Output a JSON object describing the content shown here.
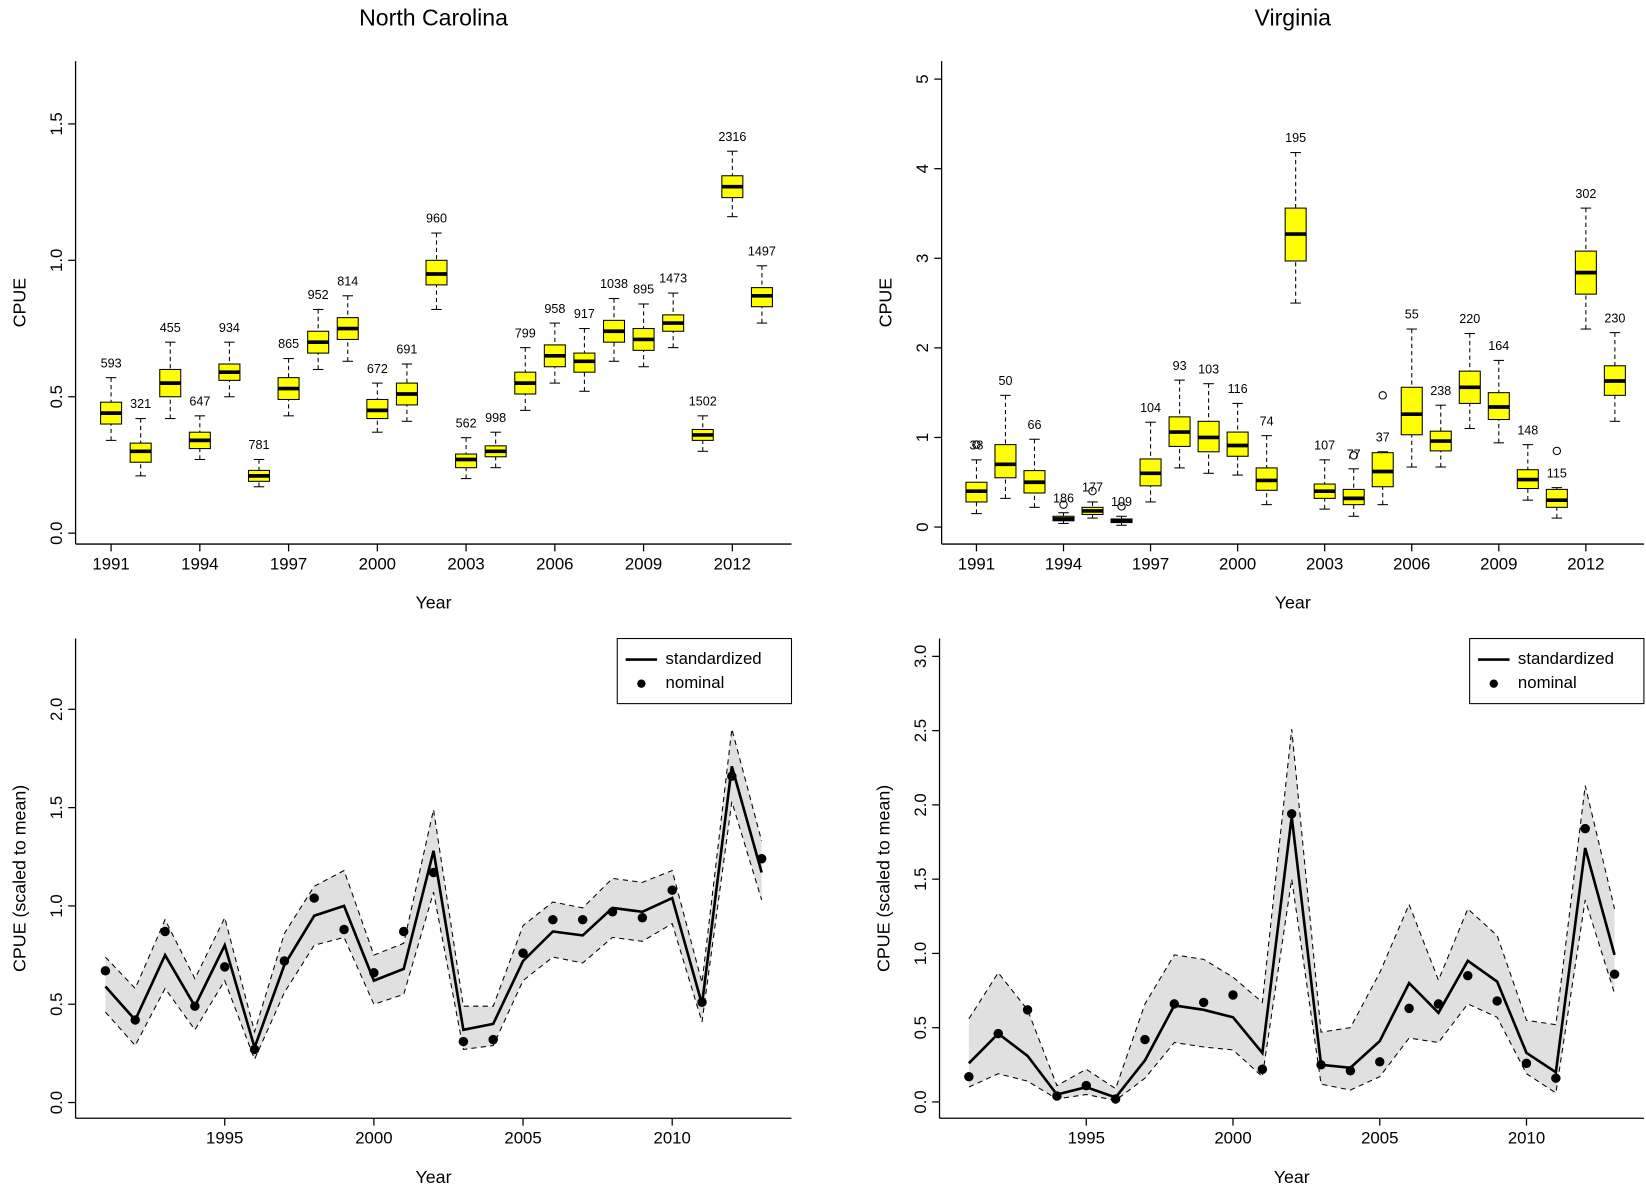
{
  "chart_data": [
    {
      "type": "box",
      "title": "North Carolina",
      "x_label": "Year",
      "y_label": "CPUE",
      "color": "#ffff00",
      "x": [
        1991,
        1992,
        1993,
        1994,
        1995,
        1996,
        1997,
        1998,
        1999,
        2000,
        2001,
        2002,
        2003,
        2004,
        2005,
        2006,
        2007,
        2008,
        2009,
        2010,
        2011,
        2012,
        2013
      ],
      "whisker_low": [
        0.34,
        0.21,
        0.42,
        0.27,
        0.5,
        0.17,
        0.43,
        0.6,
        0.63,
        0.37,
        0.41,
        0.82,
        0.2,
        0.24,
        0.45,
        0.55,
        0.52,
        0.63,
        0.61,
        0.68,
        0.3,
        1.16,
        0.77
      ],
      "q1": [
        0.4,
        0.26,
        0.5,
        0.31,
        0.56,
        0.19,
        0.49,
        0.66,
        0.71,
        0.42,
        0.47,
        0.91,
        0.24,
        0.28,
        0.51,
        0.61,
        0.59,
        0.7,
        0.67,
        0.74,
        0.34,
        1.23,
        0.83
      ],
      "median": [
        0.44,
        0.3,
        0.55,
        0.34,
        0.59,
        0.21,
        0.53,
        0.7,
        0.75,
        0.45,
        0.51,
        0.95,
        0.27,
        0.3,
        0.55,
        0.65,
        0.63,
        0.74,
        0.71,
        0.77,
        0.36,
        1.27,
        0.87
      ],
      "q3": [
        0.48,
        0.33,
        0.6,
        0.37,
        0.62,
        0.23,
        0.57,
        0.74,
        0.79,
        0.49,
        0.55,
        1.0,
        0.29,
        0.32,
        0.59,
        0.69,
        0.66,
        0.78,
        0.75,
        0.8,
        0.38,
        1.31,
        0.9
      ],
      "whisker_high": [
        0.57,
        0.42,
        0.7,
        0.43,
        0.7,
        0.27,
        0.64,
        0.82,
        0.87,
        0.55,
        0.62,
        1.1,
        0.35,
        0.37,
        0.68,
        0.77,
        0.75,
        0.86,
        0.84,
        0.88,
        0.43,
        1.4,
        0.98
      ],
      "n": [
        593,
        321,
        455,
        647,
        934,
        781,
        865,
        952,
        814,
        672,
        691,
        960,
        562,
        998,
        799,
        958,
        917,
        1038,
        895,
        1473,
        1502,
        2316,
        1497
      ],
      "xlim": [
        1989.8,
        2014
      ],
      "xticks": [
        1991,
        1994,
        1997,
        2000,
        2003,
        2006,
        2009,
        2012
      ],
      "ylim": [
        -0.04,
        1.73
      ],
      "yticks": [
        {
          "value": 0,
          "label": "0.0"
        },
        0.5,
        {
          "value": 1,
          "label": "1.0"
        },
        1.5
      ]
    },
    {
      "type": "box",
      "title": "Virginia",
      "x_label": "Year",
      "y_label": "CPUE",
      "color": "#ffff00",
      "x": [
        1991,
        1992,
        1993,
        1994,
        1995,
        1996,
        1997,
        1998,
        1999,
        2000,
        2001,
        2002,
        2003,
        2004,
        2005,
        2006,
        2007,
        2008,
        2009,
        2010,
        2011,
        2012,
        2013
      ],
      "whisker_low": [
        0.15,
        0.32,
        0.22,
        0.04,
        0.1,
        0.02,
        0.28,
        0.66,
        0.6,
        0.58,
        0.25,
        2.5,
        0.2,
        0.12,
        0.25,
        0.67,
        0.67,
        1.1,
        0.94,
        0.3,
        0.1,
        2.21,
        1.18
      ],
      "q1": [
        0.28,
        0.55,
        0.38,
        0.07,
        0.14,
        0.05,
        0.46,
        0.9,
        0.84,
        0.79,
        0.41,
        2.97,
        0.32,
        0.25,
        0.45,
        1.03,
        0.85,
        1.38,
        1.2,
        0.43,
        0.22,
        2.6,
        1.47
      ],
      "median": [
        0.4,
        0.7,
        0.5,
        0.09,
        0.18,
        0.07,
        0.6,
        1.06,
        1.0,
        0.91,
        0.52,
        3.27,
        0.4,
        0.32,
        0.62,
        1.26,
        0.96,
        1.56,
        1.34,
        0.53,
        0.3,
        2.84,
        1.63
      ],
      "q3": [
        0.5,
        0.92,
        0.63,
        0.12,
        0.22,
        0.09,
        0.76,
        1.23,
        1.18,
        1.06,
        0.66,
        3.56,
        0.48,
        0.42,
        0.83,
        1.56,
        1.07,
        1.74,
        1.5,
        0.64,
        0.42,
        3.08,
        1.8
      ],
      "whisker_high": [
        0.75,
        1.47,
        0.98,
        0.16,
        0.28,
        0.12,
        1.17,
        1.64,
        1.6,
        1.38,
        1.02,
        4.18,
        0.75,
        0.65,
        0.84,
        2.21,
        1.36,
        2.16,
        1.86,
        0.92,
        0.44,
        3.56,
        2.17
      ],
      "n": [
        38,
        50,
        66,
        186,
        177,
        109,
        104,
        93,
        103,
        116,
        74,
        195,
        107,
        77,
        37,
        55,
        238,
        220,
        164,
        148,
        115,
        302,
        230
      ],
      "outliers": {
        "x": [
          1991,
          1994,
          1995,
          1996,
          2004,
          2005,
          2011
        ],
        "values": [
          0.92,
          0.25,
          0.4,
          0.23,
          0.8,
          1.47,
          0.85
        ]
      },
      "xlim": [
        1989.8,
        2014
      ],
      "xticks": [
        1991,
        1994,
        1997,
        2000,
        2003,
        2006,
        2009,
        2012
      ],
      "ylim": [
        -0.19,
        5.2
      ],
      "yticks": [
        0,
        1,
        2,
        3,
        4,
        5
      ]
    },
    {
      "type": "line",
      "x_label": "Year",
      "y_label": "CPUE (scaled to mean)",
      "legend": "top-right",
      "x": [
        1991,
        1992,
        1993,
        1994,
        1995,
        1996,
        1997,
        1998,
        1999,
        2000,
        2001,
        2002,
        2003,
        2004,
        2005,
        2006,
        2007,
        2008,
        2009,
        2010,
        2011,
        2012,
        2013
      ],
      "band": {
        "color": "#e0e0e0",
        "lower": [
          0.46,
          0.29,
          0.58,
          0.37,
          0.62,
          0.22,
          0.56,
          0.8,
          0.84,
          0.5,
          0.55,
          1.07,
          0.27,
          0.29,
          0.62,
          0.74,
          0.71,
          0.84,
          0.82,
          0.91,
          0.41,
          1.53,
          1.03
        ],
        "upper": [
          0.74,
          0.58,
          0.93,
          0.63,
          0.94,
          0.36,
          0.86,
          1.1,
          1.18,
          0.75,
          0.81,
          1.49,
          0.49,
          0.49,
          0.9,
          1.02,
          0.99,
          1.14,
          1.12,
          1.18,
          0.61,
          1.9,
          1.33
        ]
      },
      "series": [
        {
          "name": "standardized",
          "color": "#000000",
          "mode": "line",
          "values": [
            0.59,
            0.42,
            0.75,
            0.49,
            0.8,
            0.28,
            0.7,
            0.95,
            1.0,
            0.62,
            0.68,
            1.28,
            0.37,
            0.4,
            0.72,
            0.87,
            0.85,
            0.99,
            0.97,
            1.04,
            0.5,
            1.71,
            1.17
          ]
        },
        {
          "name": "nominal",
          "color": "#000000",
          "mode": "markers",
          "values": [
            0.67,
            0.42,
            0.87,
            0.49,
            0.69,
            0.27,
            0.72,
            1.04,
            0.88,
            0.66,
            0.87,
            1.17,
            0.31,
            0.32,
            0.76,
            0.93,
            0.93,
            0.97,
            0.94,
            1.08,
            0.51,
            1.66,
            1.24
          ]
        }
      ],
      "xlim": [
        1990,
        2014
      ],
      "xticks": [
        1995,
        2000,
        2005,
        2010
      ],
      "ylim": [
        -0.08,
        2.36
      ],
      "yticks": [
        {
          "value": 0,
          "label": "0.0"
        },
        0.5,
        {
          "value": 1,
          "label": "1.0"
        },
        1.5,
        {
          "value": 2,
          "label": "2.0"
        }
      ]
    },
    {
      "type": "line",
      "x_label": "Year",
      "y_label": "CPUE (scaled to mean)",
      "legend": "top-right",
      "x": [
        1991,
        1992,
        1993,
        1994,
        1995,
        1996,
        1997,
        1998,
        1999,
        2000,
        2001,
        2002,
        2003,
        2004,
        2005,
        2006,
        2007,
        2008,
        2009,
        2010,
        2011,
        2012,
        2013
      ],
      "band": {
        "color": "#e0e0e0",
        "lower": [
          0.1,
          0.19,
          0.14,
          0.02,
          0.05,
          0.01,
          0.16,
          0.4,
          0.37,
          0.35,
          0.17,
          1.5,
          0.12,
          0.08,
          0.17,
          0.43,
          0.4,
          0.66,
          0.57,
          0.19,
          0.06,
          1.36,
          0.73
        ],
        "upper": [
          0.56,
          0.87,
          0.62,
          0.11,
          0.22,
          0.09,
          0.66,
          0.99,
          0.96,
          0.84,
          0.67,
          2.51,
          0.47,
          0.5,
          0.87,
          1.33,
          0.82,
          1.3,
          1.12,
          0.55,
          0.52,
          2.13,
          1.3
        ]
      },
      "series": [
        {
          "name": "standardized",
          "color": "#000000",
          "mode": "line",
          "values": [
            0.26,
            0.46,
            0.31,
            0.05,
            0.1,
            0.03,
            0.28,
            0.65,
            0.62,
            0.57,
            0.33,
            1.92,
            0.25,
            0.23,
            0.41,
            0.8,
            0.6,
            0.95,
            0.81,
            0.33,
            0.2,
            1.71,
            0.99
          ]
        },
        {
          "name": "nominal",
          "color": "#000000",
          "mode": "markers",
          "values": [
            0.17,
            0.46,
            0.62,
            0.04,
            0.11,
            0.02,
            0.42,
            0.66,
            0.67,
            0.72,
            0.22,
            1.94,
            0.25,
            0.21,
            0.27,
            0.63,
            0.66,
            0.85,
            0.68,
            0.26,
            0.16,
            1.84,
            0.86
          ]
        }
      ],
      "xlim": [
        1990,
        2014
      ],
      "xticks": [
        1995,
        2000,
        2005,
        2010
      ],
      "ylim": [
        -0.11,
        3.12
      ],
      "yticks": [
        {
          "value": 0,
          "label": "0.0"
        },
        0.5,
        {
          "value": 1,
          "label": "1.0"
        },
        1.5,
        {
          "value": 2,
          "label": "2.0"
        },
        2.5,
        {
          "value": 3,
          "label": "3.0"
        }
      ]
    }
  ]
}
